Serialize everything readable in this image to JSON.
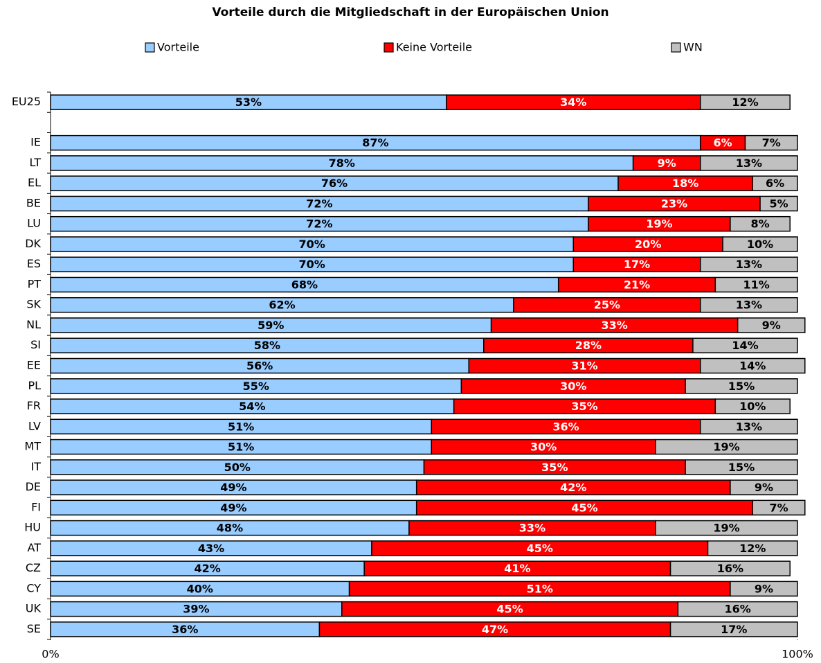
{
  "chart_data": {
    "type": "stacked-bar-horizontal",
    "title": "Vorteile durch die Mitgliedschaft in der Europäischen Union",
    "categories": [
      "EU25",
      null,
      "IE",
      "LT",
      "EL",
      "BE",
      "LU",
      "DK",
      "ES",
      "PT",
      "SK",
      "NL",
      "SI",
      "EE",
      "PL",
      "FR",
      "LV",
      "MT",
      "IT",
      "DE",
      "FI",
      "HU",
      "AT",
      "CZ",
      "CY",
      "UK",
      "SE"
    ],
    "series": [
      {
        "name": "Vorteile",
        "color": "#99ccff",
        "label_color": "#000000",
        "values": [
          53,
          null,
          87,
          78,
          76,
          72,
          72,
          70,
          70,
          68,
          62,
          59,
          58,
          56,
          55,
          54,
          51,
          51,
          50,
          49,
          49,
          48,
          43,
          42,
          40,
          39,
          36
        ],
        "value_labels": [
          "53%",
          null,
          "87%",
          "78%",
          "76%",
          "72%",
          "72%",
          "70%",
          "70%",
          "68%",
          "62%",
          "59%",
          "58%",
          "56%",
          "55%",
          "54%",
          "51%",
          "51%",
          "50%",
          "49%",
          "49%",
          "48%",
          "43%",
          "42%",
          "40%",
          "39%",
          "36%"
        ]
      },
      {
        "name": "Keine Vorteile",
        "color": "#ff0000",
        "label_color": "#ffffff",
        "values": [
          34,
          null,
          6,
          9,
          18,
          23,
          19,
          20,
          17,
          21,
          25,
          33,
          28,
          31,
          30,
          35,
          36,
          30,
          35,
          42,
          45,
          33,
          45,
          41,
          51,
          45,
          47
        ],
        "value_labels": [
          "34%",
          null,
          "6%",
          "9%",
          "18%",
          "23%",
          "19%",
          "20%",
          "17%",
          "21%",
          "25%",
          "33%",
          "28%",
          "31%",
          "30%",
          "35%",
          "36%",
          "30%",
          "35%",
          "42%",
          "45%",
          "33%",
          "45%",
          "41%",
          "51%",
          "45%",
          "47%"
        ]
      },
      {
        "name": "WN",
        "color": "#c0c0c0",
        "label_color": "#000000",
        "values": [
          12,
          null,
          7,
          13,
          6,
          5,
          8,
          10,
          13,
          11,
          13,
          9,
          14,
          14,
          15,
          10,
          13,
          19,
          15,
          9,
          7,
          19,
          12,
          16,
          9,
          16,
          17
        ],
        "value_labels": [
          "12%",
          null,
          "7%",
          "13%",
          "6%",
          "5%",
          "8%",
          "10%",
          "13%",
          "11%",
          "13%",
          "9%",
          "14%",
          "14%",
          "15%",
          "10%",
          "13%",
          "19%",
          "15%",
          "9%",
          "7%",
          "19%",
          "12%",
          "16%",
          "9%",
          "16%",
          "17%"
        ]
      }
    ],
    "xlim": [
      0,
      100
    ],
    "xticks": [
      {
        "value": 0,
        "label": "0%"
      },
      {
        "value": 100,
        "label": "100%"
      }
    ],
    "legend": "top"
  }
}
